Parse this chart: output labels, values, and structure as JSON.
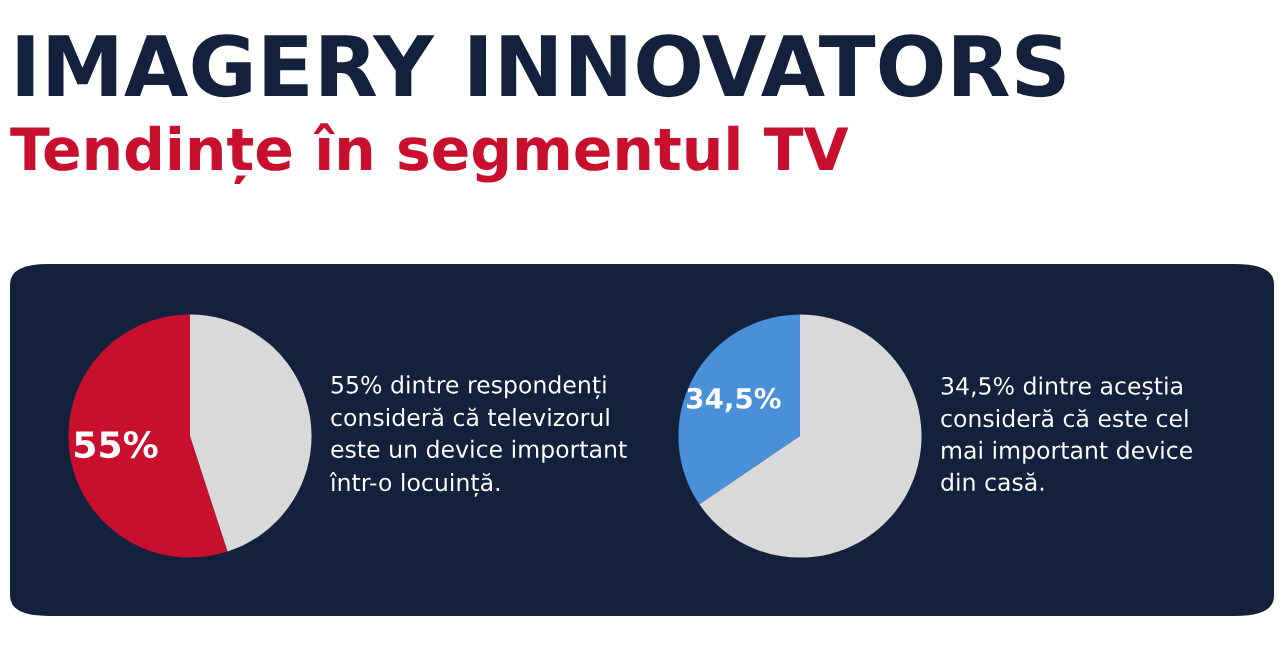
{
  "chart_data": [
    {
      "type": "pie",
      "title": "IMAGERY INNOVATORS",
      "subtitle": "Tendințe în segmentul TV",
      "categories": [
        null,
        null
      ],
      "values": [
        55,
        45
      ],
      "colors": [
        "#c8102e",
        "#d9d9d9"
      ],
      "value_labels": [
        "55%",
        null
      ],
      "annotations": [
        "55% dintre respondenți\nconsideră că televizorul\neste un device important\nîntr-o locuință."
      ]
    },
    {
      "type": "pie",
      "categories": [
        null,
        null
      ],
      "values": [
        34.5,
        65.5
      ],
      "colors": [
        "#4a90d9",
        "#d9d9d9"
      ],
      "value_labels": [
        "34,5%",
        null
      ],
      "annotations": [
        "34,5% dintre aceștia\nconsideră că este cel\nmai important device\ndin casă."
      ]
    }
  ]
}
